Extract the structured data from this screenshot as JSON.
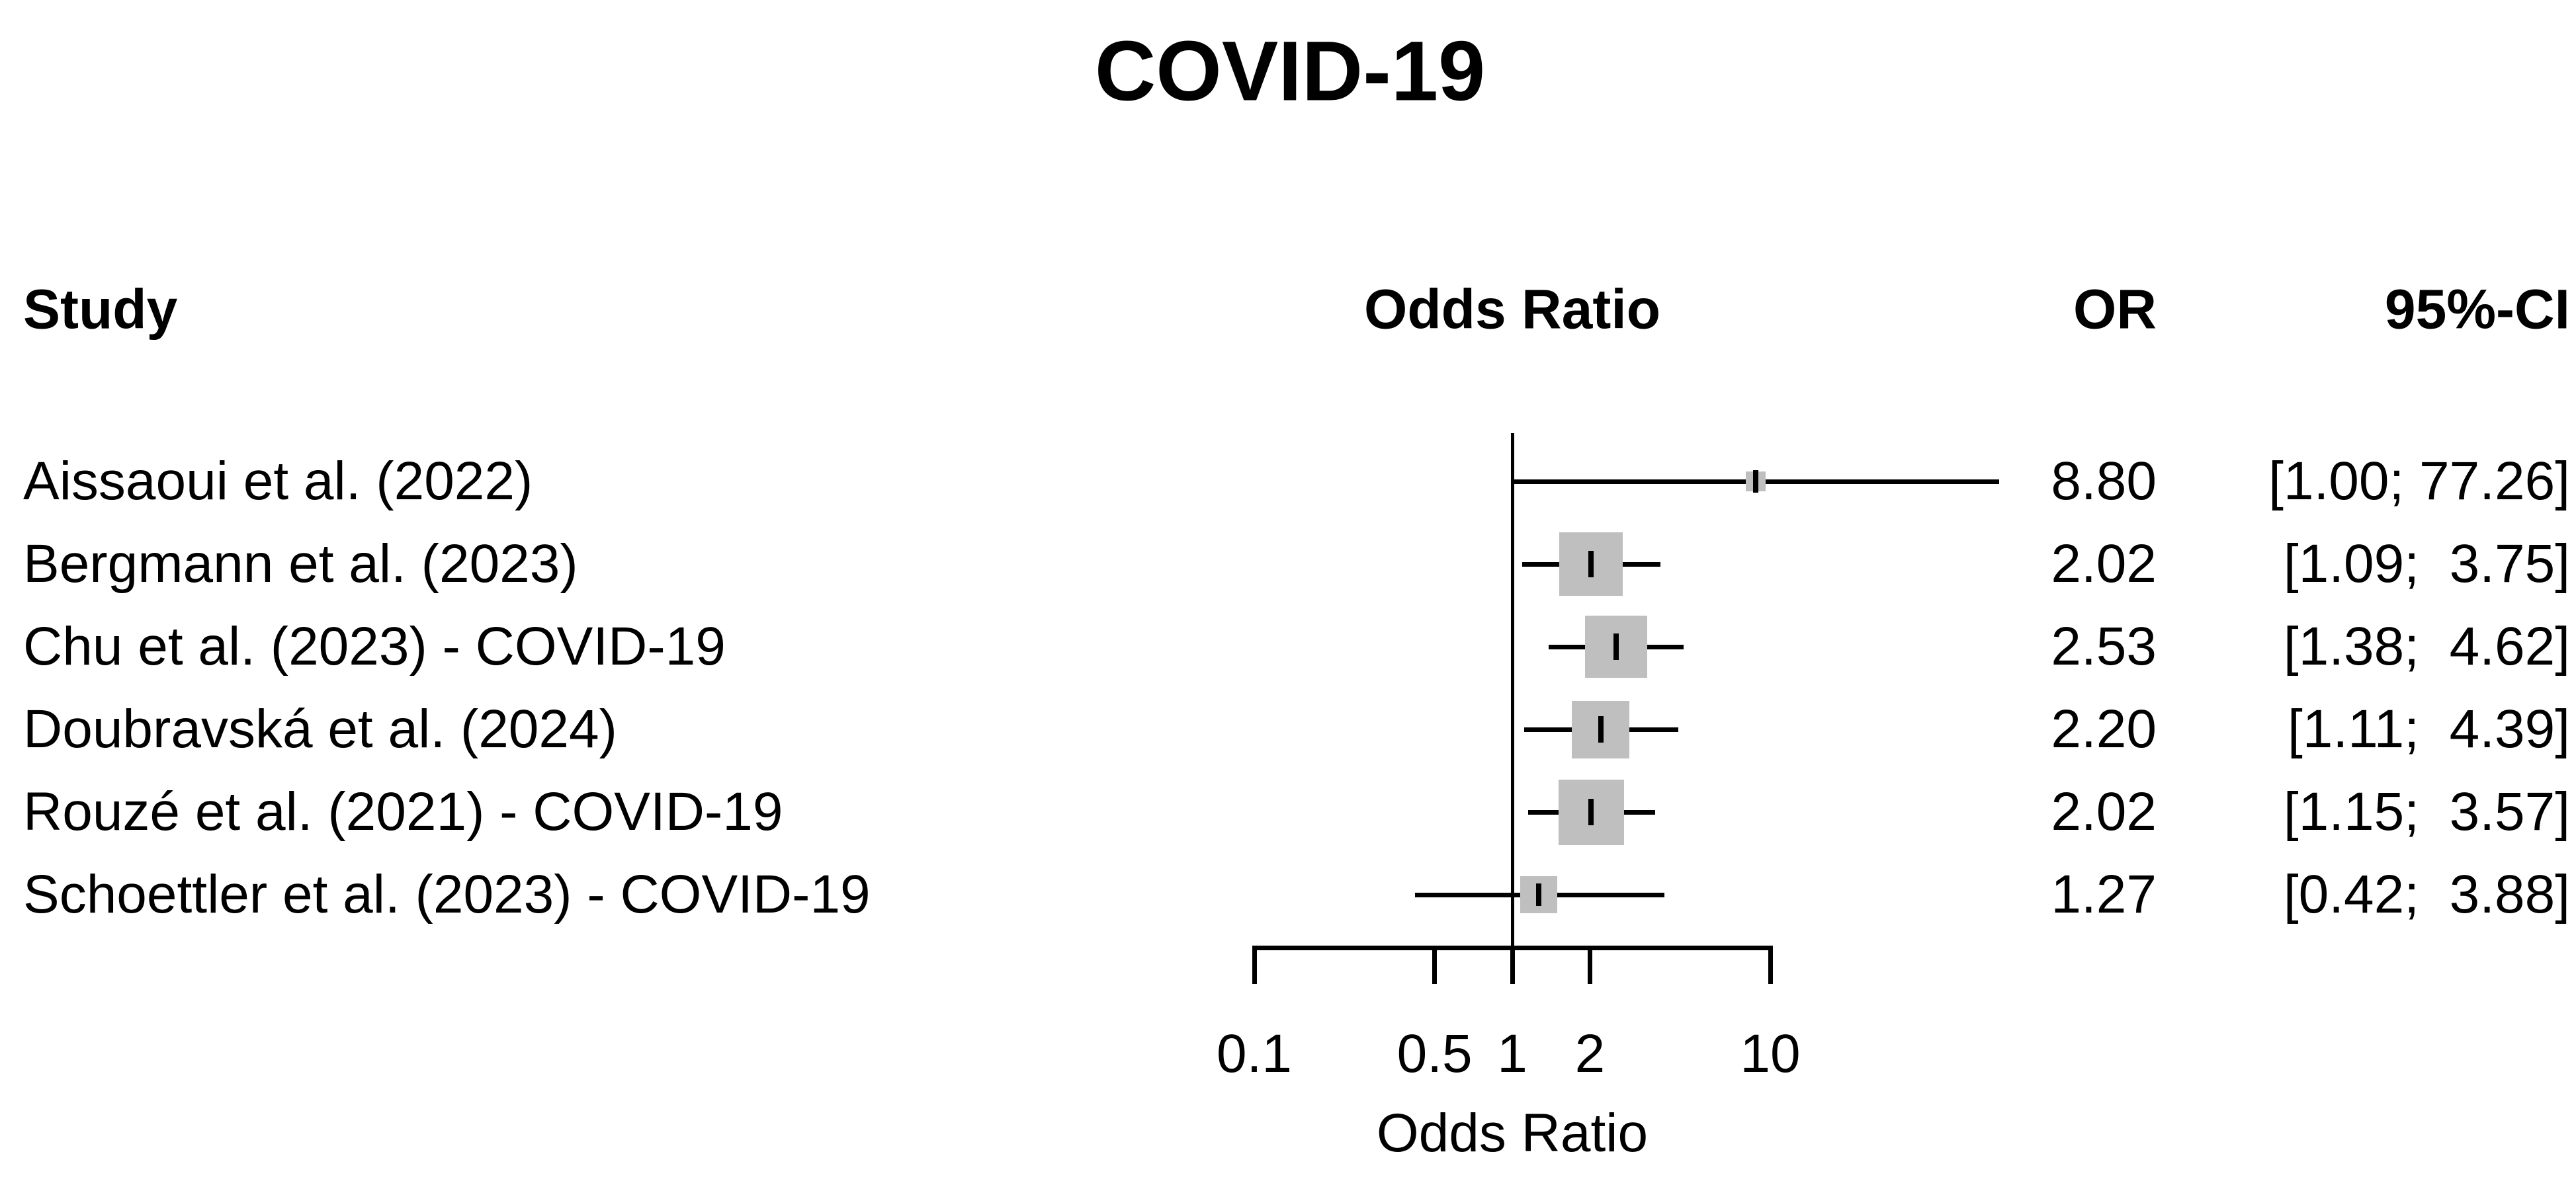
{
  "title": "COVID-19",
  "columns": {
    "study": "Study",
    "plot": "Odds Ratio",
    "or": "OR",
    "ci": "95%-CI"
  },
  "axis": {
    "label": "Odds Ratio",
    "tick_labels": [
      "0.1",
      "0.5",
      "1",
      "2",
      "10"
    ]
  },
  "colors": {
    "background": "#ffffff",
    "text": "#000000",
    "line": "#000000",
    "weight_square": "#bfbfbf"
  },
  "chart_data": {
    "type": "scatter",
    "subtype": "forest-plot",
    "title": "COVID-19",
    "xlabel": "Odds Ratio",
    "x_scale": "log10",
    "x_axis_range": [
      0.1,
      10
    ],
    "x_ticks": [
      0.1,
      0.5,
      1,
      2,
      10
    ],
    "reference_line": 1.0,
    "grid": false,
    "studies": [
      {
        "name": "Aissaoui et al. (2022)",
        "or": 8.8,
        "ci_low": 1.0,
        "ci_high": 77.26,
        "or_text": "8.80",
        "ci_text": "[1.00; 77.26]",
        "marker_size": 30
      },
      {
        "name": "Bergmann et al. (2023)",
        "or": 2.02,
        "ci_low": 1.09,
        "ci_high": 3.75,
        "or_text": "2.02",
        "ci_text": "[1.09;  3.75]",
        "marker_size": 96
      },
      {
        "name": "Chu et al. (2023) - COVID-19",
        "or": 2.53,
        "ci_low": 1.38,
        "ci_high": 4.62,
        "or_text": "2.53",
        "ci_text": "[1.38;  4.62]",
        "marker_size": 94
      },
      {
        "name": "Doubravská et al. (2024)",
        "or": 2.2,
        "ci_low": 1.11,
        "ci_high": 4.39,
        "or_text": "2.20",
        "ci_text": "[1.11;  4.39]",
        "marker_size": 87
      },
      {
        "name": "Rouzé et al. (2021) - COVID-19",
        "or": 2.02,
        "ci_low": 1.15,
        "ci_high": 3.57,
        "or_text": "2.02",
        "ci_text": "[1.15;  3.57]",
        "marker_size": 99
      },
      {
        "name": "Schoettler et al. (2023) - COVID-19",
        "or": 1.27,
        "ci_low": 0.42,
        "ci_high": 3.88,
        "or_text": "1.27",
        "ci_text": "[0.42;  3.88]",
        "marker_size": 56
      }
    ]
  }
}
